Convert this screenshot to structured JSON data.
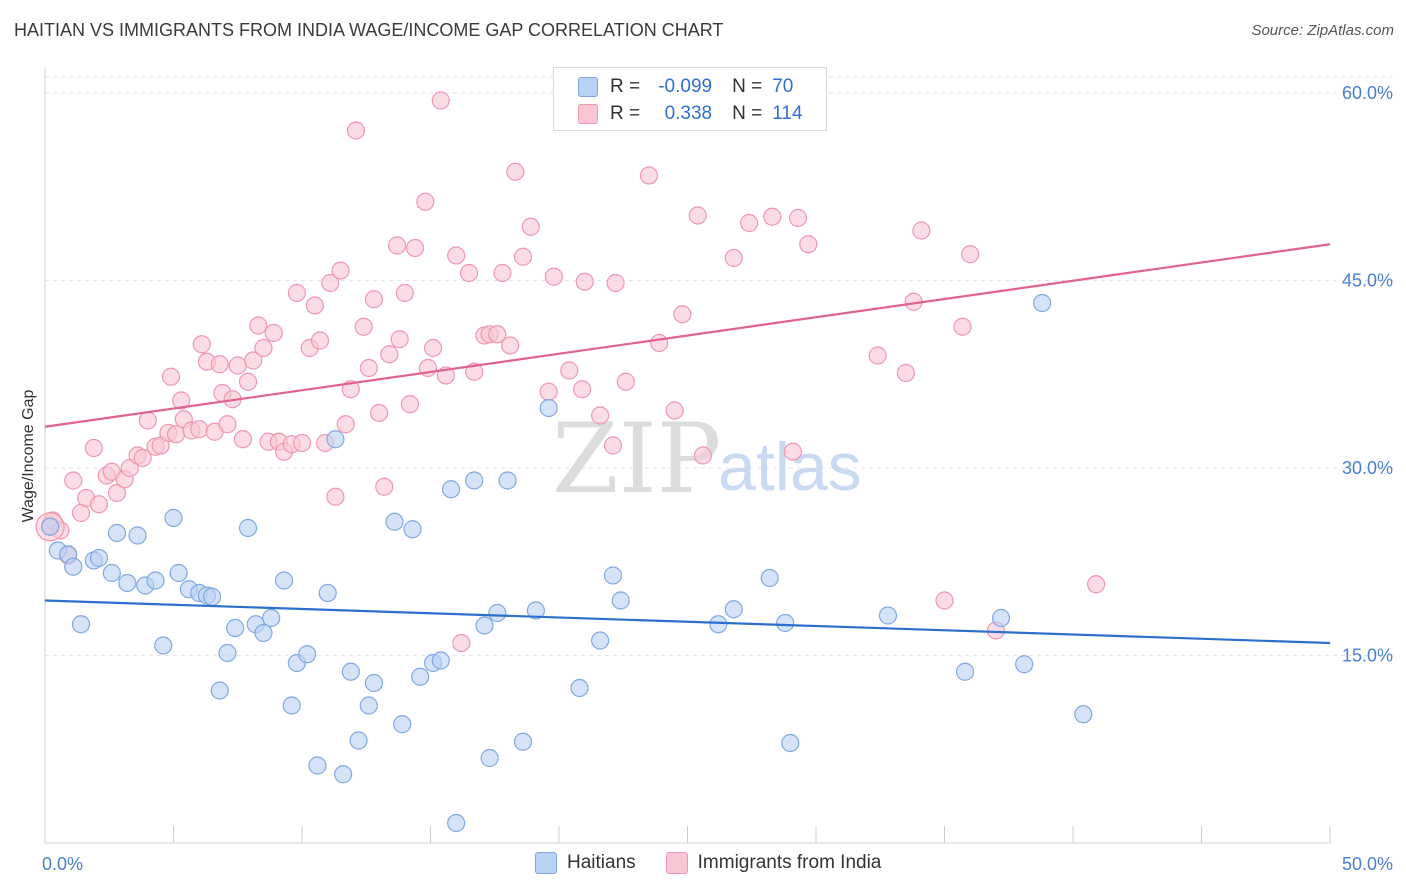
{
  "header": {
    "title": "HAITIAN VS IMMIGRANTS FROM INDIA WAGE/INCOME GAP CORRELATION CHART",
    "source": "Source: ZipAtlas.com"
  },
  "legend": {
    "r_label": "R =",
    "n_label": "N =",
    "series": [
      {
        "r": "-0.099",
        "n": "70"
      },
      {
        "r": "0.338",
        "n": "114"
      }
    ]
  },
  "bottom_legend": [
    "Haitians",
    "Immigrants from India"
  ],
  "watermark": {
    "zip": "ZIP",
    "atlas": "atlas"
  },
  "colors": {
    "haitians_fill": "#b9d2f3",
    "haitians_stroke": "#7fa8e0",
    "haitians_line": "#2c6fcc",
    "india_fill": "#f9c6d4",
    "india_stroke": "#ef96b1",
    "india_line": "#e0628f",
    "tick_text": "#4a7fd0"
  },
  "chart_data": {
    "type": "scatter",
    "title": "HAITIAN VS IMMIGRANTS FROM INDIA WAGE/INCOME GAP CORRELATION CHART",
    "xlabel": "",
    "ylabel": "Wage/Income Gap",
    "xlim": [
      0,
      50
    ],
    "ylim": [
      0,
      62
    ],
    "x_tick_labels": [
      "0.0%",
      "50.0%"
    ],
    "y_ticks": [
      15,
      30,
      45,
      60
    ],
    "y_tick_labels": [
      "15.0%",
      "30.0%",
      "45.0%",
      "60.0%"
    ],
    "grid": true,
    "legend_position": "top-center",
    "series": [
      {
        "name": "Haitians",
        "r": -0.099,
        "n": 70,
        "trend": {
          "x": [
            0,
            50
          ],
          "y": [
            19.4,
            16.0
          ]
        },
        "points": [
          [
            0.2,
            25.3
          ],
          [
            0.5,
            23.4
          ],
          [
            0.9,
            23.1
          ],
          [
            1.1,
            22.1
          ],
          [
            1.4,
            17.5
          ],
          [
            1.9,
            22.6
          ],
          [
            2.1,
            22.8
          ],
          [
            2.6,
            21.6
          ],
          [
            2.8,
            24.8
          ],
          [
            3.2,
            20.8
          ],
          [
            3.6,
            24.6
          ],
          [
            3.9,
            20.6
          ],
          [
            4.3,
            21.0
          ],
          [
            4.6,
            15.8
          ],
          [
            5.0,
            26.0
          ],
          [
            5.2,
            21.6
          ],
          [
            5.6,
            20.3
          ],
          [
            6.0,
            20.0
          ],
          [
            6.3,
            19.8
          ],
          [
            6.5,
            19.7
          ],
          [
            6.8,
            12.2
          ],
          [
            7.1,
            15.2
          ],
          [
            7.4,
            17.2
          ],
          [
            7.9,
            25.2
          ],
          [
            8.2,
            17.5
          ],
          [
            8.5,
            16.8
          ],
          [
            8.8,
            18.0
          ],
          [
            9.3,
            21.0
          ],
          [
            9.6,
            11.0
          ],
          [
            9.8,
            14.4
          ],
          [
            10.2,
            15.1
          ],
          [
            10.6,
            6.2
          ],
          [
            11.0,
            20.0
          ],
          [
            11.3,
            32.3
          ],
          [
            11.6,
            5.5
          ],
          [
            11.9,
            13.7
          ],
          [
            12.2,
            8.2
          ],
          [
            12.6,
            11.0
          ],
          [
            12.8,
            12.8
          ],
          [
            13.6,
            25.7
          ],
          [
            13.9,
            9.5
          ],
          [
            14.3,
            25.1
          ],
          [
            14.6,
            13.3
          ],
          [
            15.1,
            14.4
          ],
          [
            15.4,
            14.6
          ],
          [
            15.8,
            28.3
          ],
          [
            16.0,
            1.6
          ],
          [
            16.7,
            29.0
          ],
          [
            17.1,
            17.4
          ],
          [
            17.3,
            6.8
          ],
          [
            17.6,
            18.4
          ],
          [
            18.0,
            29.0
          ],
          [
            18.6,
            8.1
          ],
          [
            19.1,
            18.6
          ],
          [
            19.6,
            34.8
          ],
          [
            20.8,
            12.4
          ],
          [
            21.6,
            16.2
          ],
          [
            22.1,
            21.4
          ],
          [
            22.4,
            19.4
          ],
          [
            26.2,
            17.5
          ],
          [
            26.8,
            18.7
          ],
          [
            28.2,
            21.2
          ],
          [
            28.8,
            17.6
          ],
          [
            29.0,
            8.0
          ],
          [
            32.8,
            18.2
          ],
          [
            35.8,
            13.7
          ],
          [
            37.2,
            18.0
          ],
          [
            38.1,
            14.3
          ],
          [
            38.8,
            43.2
          ],
          [
            40.4,
            10.3
          ]
        ]
      },
      {
        "name": "Immigrants from India",
        "r": 0.338,
        "n": 114,
        "trend": {
          "x": [
            0,
            50
          ],
          "y": [
            33.3,
            47.9
          ]
        },
        "points": [
          [
            0.2,
            25.4
          ],
          [
            0.3,
            25.8
          ],
          [
            0.6,
            25.0
          ],
          [
            0.9,
            23.0
          ],
          [
            1.1,
            29.0
          ],
          [
            1.4,
            26.4
          ],
          [
            1.6,
            27.6
          ],
          [
            1.9,
            31.6
          ],
          [
            2.1,
            27.1
          ],
          [
            2.4,
            29.4
          ],
          [
            2.6,
            29.7
          ],
          [
            2.8,
            28.0
          ],
          [
            3.1,
            29.1
          ],
          [
            3.3,
            30.0
          ],
          [
            3.6,
            31.0
          ],
          [
            3.8,
            30.8
          ],
          [
            4.0,
            33.8
          ],
          [
            4.3,
            31.7
          ],
          [
            4.5,
            31.8
          ],
          [
            4.8,
            32.8
          ],
          [
            4.9,
            37.3
          ],
          [
            5.1,
            32.7
          ],
          [
            5.3,
            35.4
          ],
          [
            5.4,
            33.9
          ],
          [
            5.7,
            33.0
          ],
          [
            6.0,
            33.1
          ],
          [
            6.1,
            39.9
          ],
          [
            6.3,
            38.5
          ],
          [
            6.6,
            32.9
          ],
          [
            6.8,
            38.3
          ],
          [
            6.9,
            36.0
          ],
          [
            7.1,
            33.5
          ],
          [
            7.3,
            35.5
          ],
          [
            7.5,
            38.2
          ],
          [
            7.7,
            32.3
          ],
          [
            7.9,
            36.9
          ],
          [
            8.1,
            38.6
          ],
          [
            8.3,
            41.4
          ],
          [
            8.5,
            39.6
          ],
          [
            8.7,
            32.1
          ],
          [
            8.9,
            40.8
          ],
          [
            9.1,
            32.1
          ],
          [
            9.3,
            31.3
          ],
          [
            9.6,
            31.9
          ],
          [
            9.8,
            44.0
          ],
          [
            10.0,
            32.0
          ],
          [
            10.3,
            39.6
          ],
          [
            10.5,
            43.0
          ],
          [
            10.7,
            40.2
          ],
          [
            10.9,
            32.0
          ],
          [
            11.1,
            44.8
          ],
          [
            11.3,
            27.7
          ],
          [
            11.5,
            45.8
          ],
          [
            11.7,
            33.5
          ],
          [
            11.9,
            36.3
          ],
          [
            12.1,
            57.0
          ],
          [
            12.4,
            41.3
          ],
          [
            12.6,
            38.0
          ],
          [
            12.8,
            43.5
          ],
          [
            13.0,
            34.4
          ],
          [
            13.2,
            28.5
          ],
          [
            13.4,
            39.1
          ],
          [
            13.7,
            47.8
          ],
          [
            13.8,
            40.3
          ],
          [
            14.0,
            44.0
          ],
          [
            14.2,
            35.1
          ],
          [
            14.4,
            47.6
          ],
          [
            14.8,
            51.3
          ],
          [
            14.9,
            38.0
          ],
          [
            15.1,
            39.6
          ],
          [
            15.4,
            59.4
          ],
          [
            15.6,
            37.4
          ],
          [
            16.0,
            47.0
          ],
          [
            16.2,
            16.0
          ],
          [
            16.5,
            45.6
          ],
          [
            16.7,
            37.7
          ],
          [
            17.1,
            40.6
          ],
          [
            17.3,
            40.7
          ],
          [
            17.6,
            40.7
          ],
          [
            17.8,
            45.6
          ],
          [
            18.1,
            39.8
          ],
          [
            18.3,
            53.7
          ],
          [
            18.6,
            46.9
          ],
          [
            18.9,
            49.3
          ],
          [
            19.6,
            36.1
          ],
          [
            19.8,
            45.3
          ],
          [
            20.4,
            37.8
          ],
          [
            20.9,
            36.3
          ],
          [
            21.0,
            44.9
          ],
          [
            21.6,
            34.2
          ],
          [
            22.1,
            31.8
          ],
          [
            22.2,
            44.8
          ],
          [
            22.6,
            36.9
          ],
          [
            23.5,
            53.4
          ],
          [
            23.9,
            40.0
          ],
          [
            24.5,
            34.6
          ],
          [
            24.8,
            42.3
          ],
          [
            25.4,
            50.2
          ],
          [
            25.6,
            31.0
          ],
          [
            26.8,
            46.8
          ],
          [
            27.4,
            49.6
          ],
          [
            28.3,
            50.1
          ],
          [
            29.1,
            31.3
          ],
          [
            29.3,
            50.0
          ],
          [
            29.7,
            47.9
          ],
          [
            32.4,
            39.0
          ],
          [
            33.5,
            37.6
          ],
          [
            33.8,
            43.3
          ],
          [
            34.1,
            49.0
          ],
          [
            35.0,
            19.4
          ],
          [
            35.7,
            41.3
          ],
          [
            36.0,
            47.1
          ],
          [
            37.0,
            17.0
          ],
          [
            40.9,
            20.7
          ]
        ]
      }
    ]
  }
}
